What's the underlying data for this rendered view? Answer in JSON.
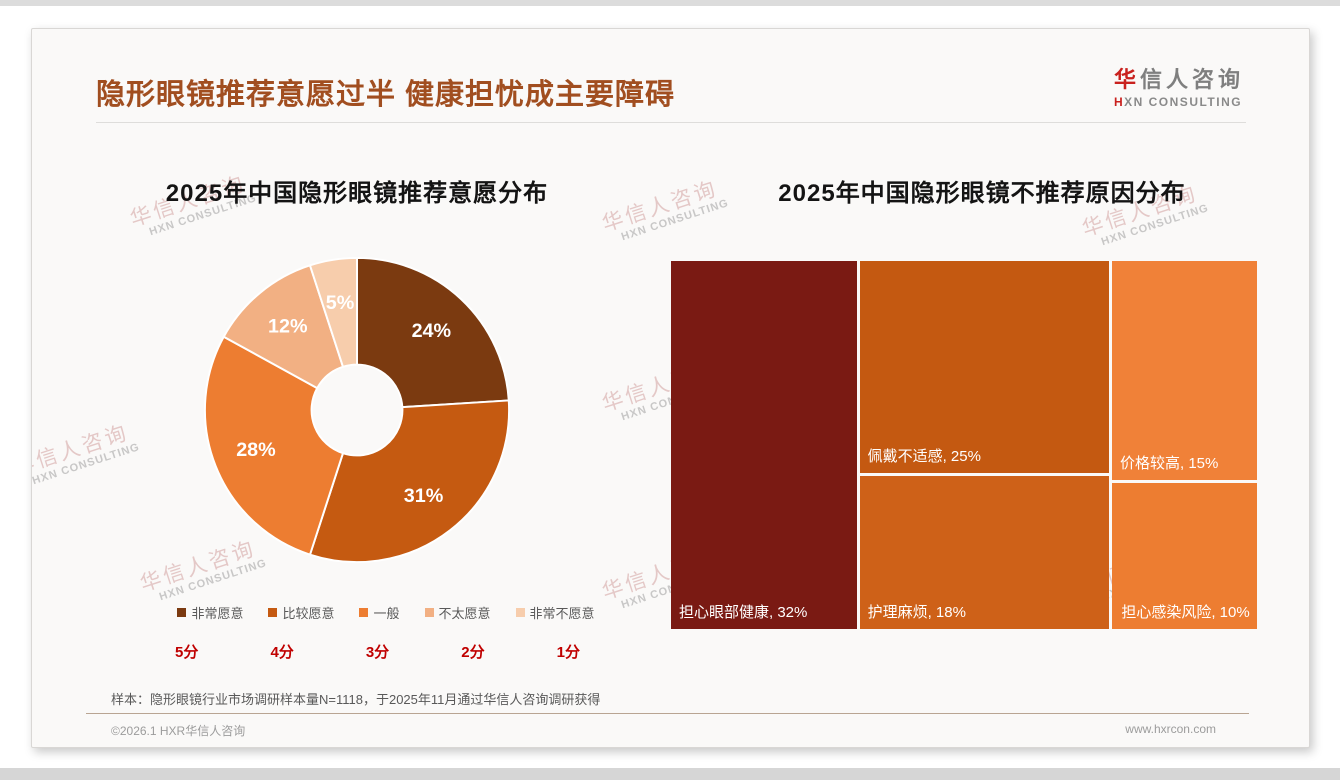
{
  "header": {
    "title": "隐形眼镜推荐意愿过半 健康担忧成主要障碍",
    "logo": {
      "cn_highlight": "华",
      "cn_rest": "信人咨询",
      "en_highlight": "H",
      "en_rest": "XN CONSULTING"
    }
  },
  "watermark": {
    "cn": "华信人咨询",
    "en": "HXN CONSULTING"
  },
  "chart_data": [
    {
      "type": "pie",
      "subtype": "donut",
      "title": "2025年中国隐形眼镜推荐意愿分布",
      "categories": [
        "非常愿意",
        "比较愿意",
        "一般",
        "不太愿意",
        "非常不愿意"
      ],
      "values": [
        24,
        31,
        28,
        12,
        5
      ],
      "data_labels": [
        "24%",
        "31%",
        "28%",
        "12%",
        "5%"
      ],
      "score_labels": [
        "5分",
        "4分",
        "3分",
        "2分",
        "1分"
      ],
      "colors": [
        "#7B3A10",
        "#C55A11",
        "#ED7D31",
        "#F2B083",
        "#F7CDAC"
      ],
      "start_angle_deg": 0,
      "direction": "clockwise",
      "legend_position": "bottom"
    },
    {
      "type": "treemap",
      "title": "2025年中国隐形眼镜不推荐原因分布",
      "items": [
        {
          "label": "担心眼部健康",
          "value": 32,
          "display": "担心眼部健康, 32%",
          "color": "#7A1A13"
        },
        {
          "label": "佩戴不适感",
          "value": 25,
          "display": "佩戴不适感, 25%",
          "color": "#C45911"
        },
        {
          "label": "护理麻烦",
          "value": 18,
          "display": "护理麻烦, 18%",
          "color": "#CE6118"
        },
        {
          "label": "价格较高",
          "value": 15,
          "display": "价格较高, 15%",
          "color": "#F08138"
        },
        {
          "label": "担心感染风险",
          "value": 10,
          "display": "担心感染风险, 10%",
          "color": "#ED7D31"
        }
      ],
      "layout": {
        "columns": [
          [
            0
          ],
          [
            1,
            2
          ],
          [
            3,
            4
          ]
        ]
      }
    }
  ],
  "note": "样本：隐形眼镜行业市场调研样本量N=1118，于2025年11月通过华信人咨询调研获得",
  "footer": {
    "left": "©2026.1 HXR华信人咨询",
    "right": "www.hxrcon.com"
  },
  "theme": {
    "title_color": "#A14E20",
    "score_color": "#C00000",
    "logo_red": "#C9211E"
  }
}
